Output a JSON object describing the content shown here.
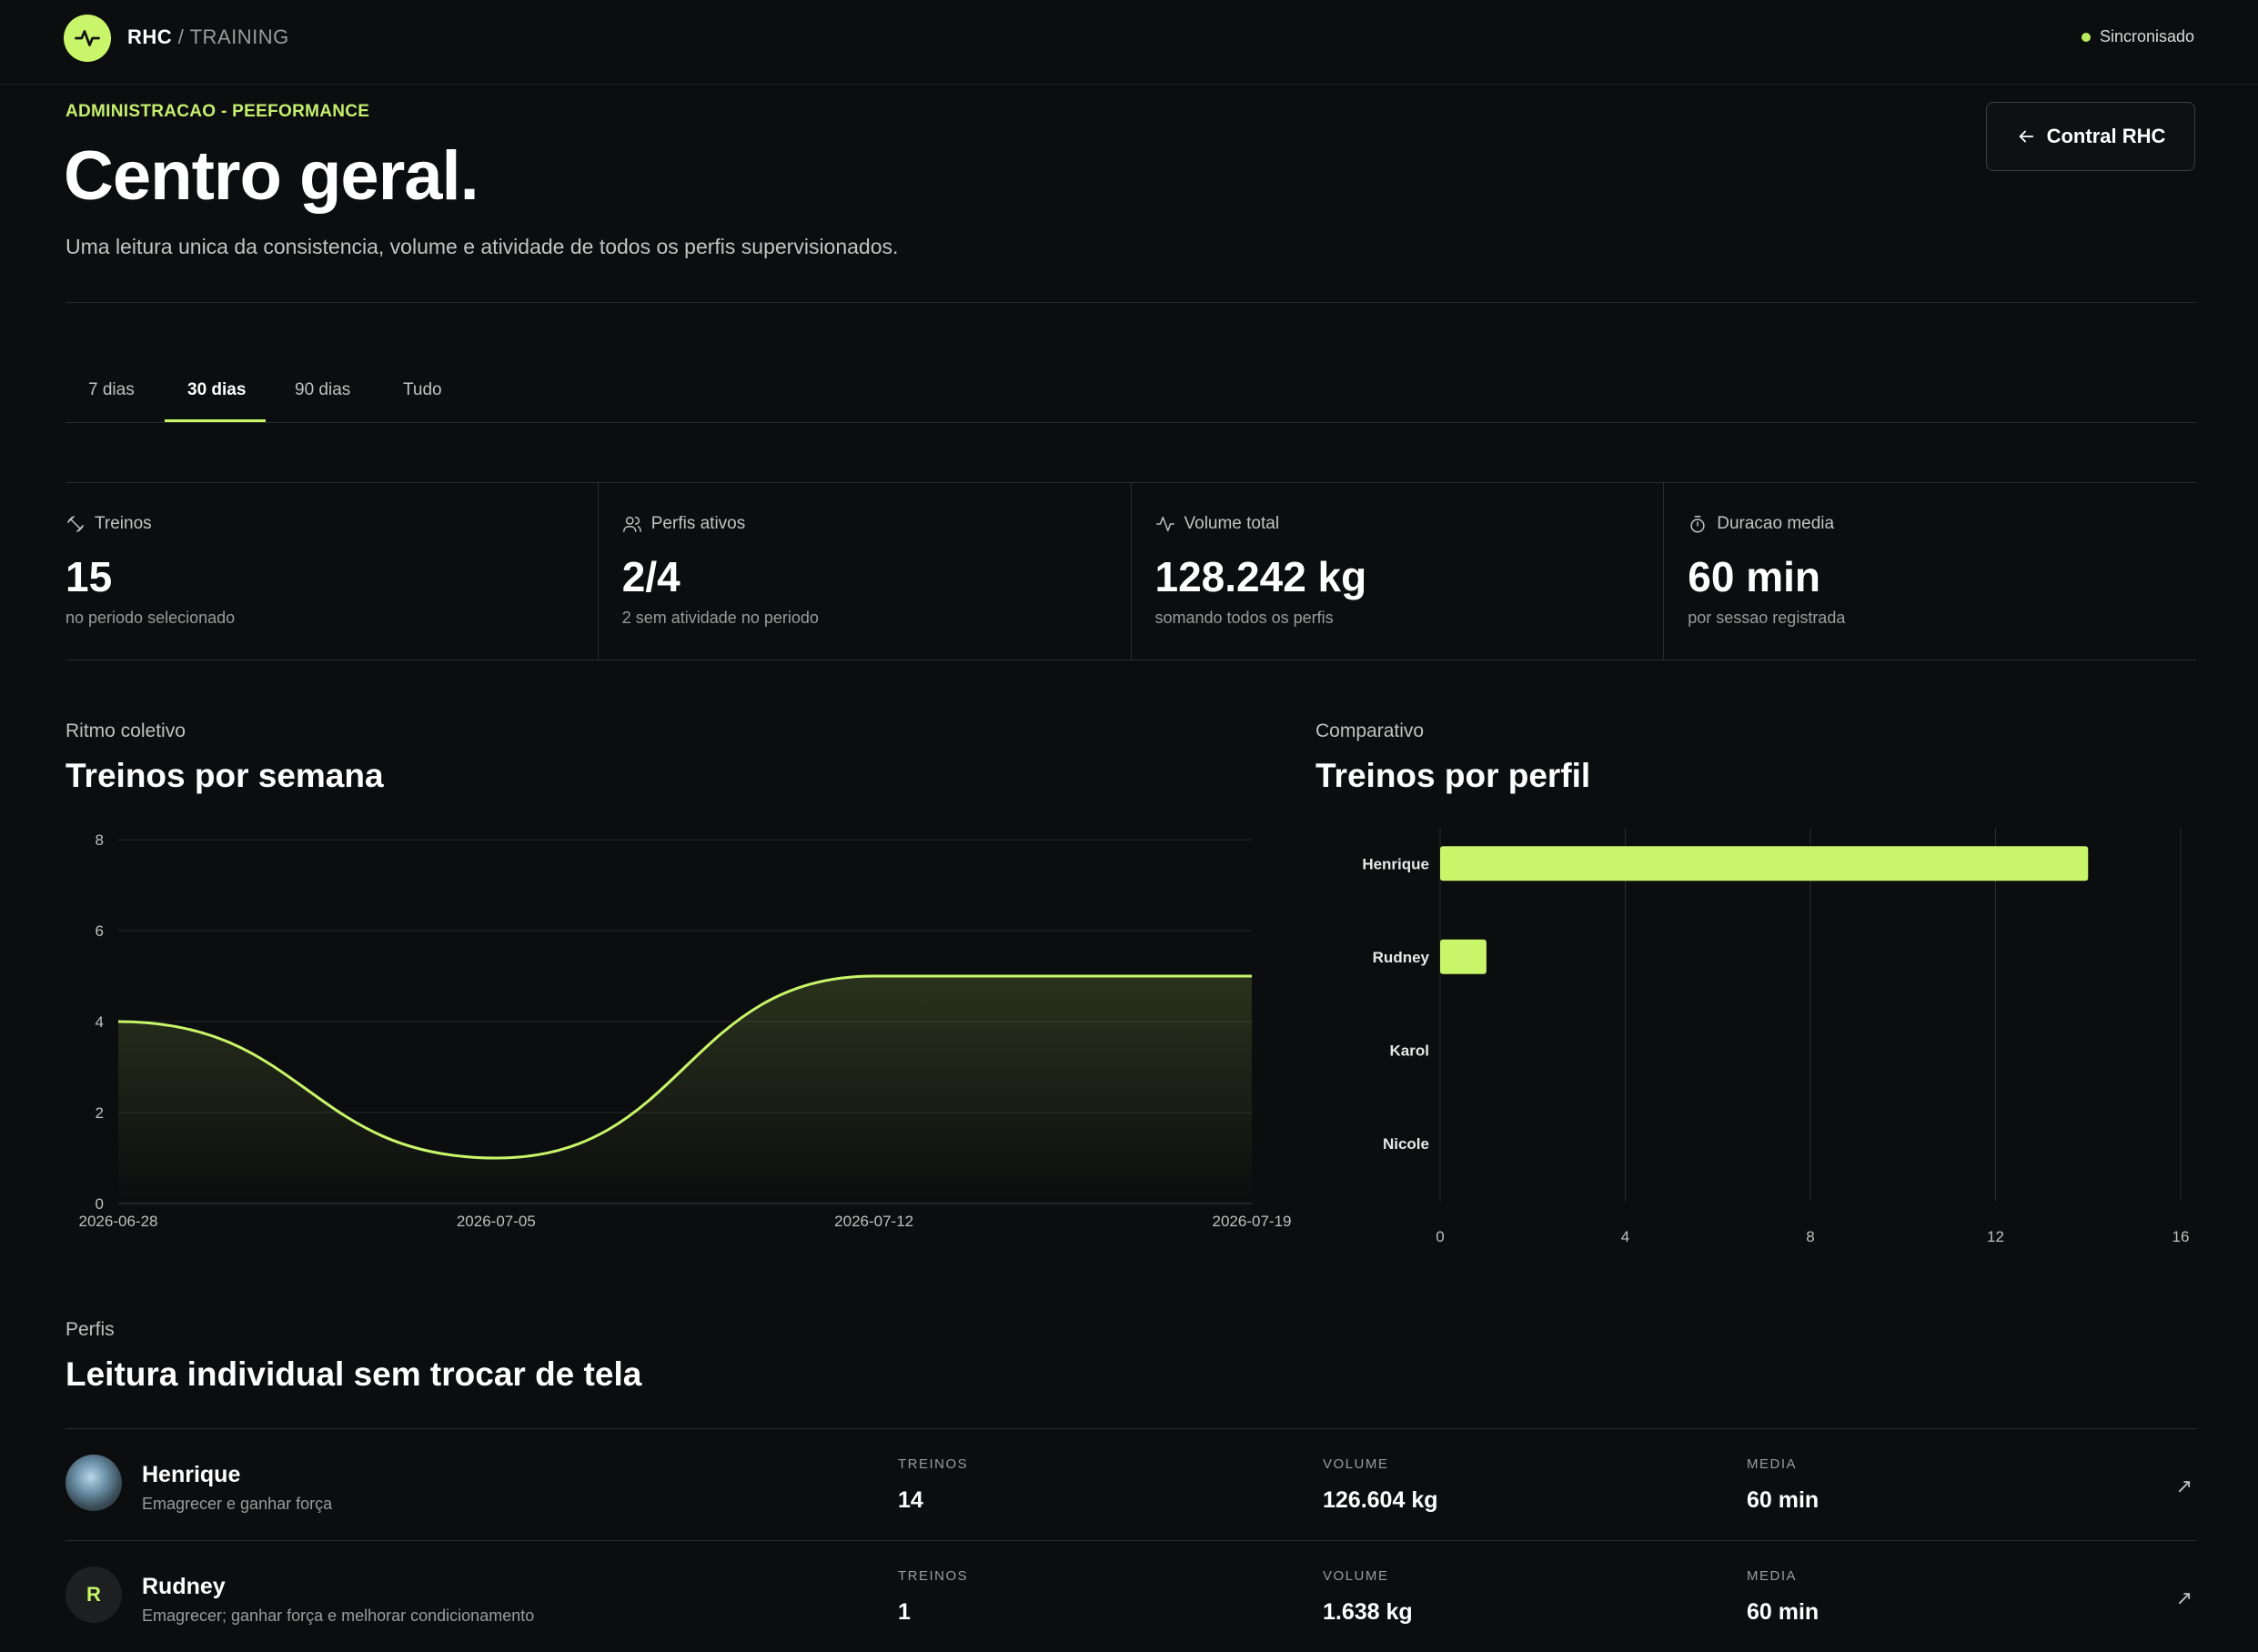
{
  "header": {
    "brand_strong": "RHC",
    "brand_rest": " / TRAINING",
    "sync_status": "Sincronisado"
  },
  "page": {
    "eyebrow": "ADMINISTRACAO - PEEFORMANCE",
    "title": "Centro geral.",
    "subtitle": "Uma leitura unica da consistencia, volume e atividade de todos os perfis supervisionados.",
    "back_button": "Contral RHC"
  },
  "tabs": [
    {
      "label": "7 dias"
    },
    {
      "label": "30 dias"
    },
    {
      "label": "90 dias"
    },
    {
      "label": "Tudo"
    }
  ],
  "active_tab": "30 dias",
  "stats": [
    {
      "icon": "dumbbell-icon",
      "label": "Treinos",
      "value": "15",
      "note": "no periodo selecionado"
    },
    {
      "icon": "users-icon",
      "label": "Perfis ativos",
      "value": "2/4",
      "note": "2 sem atividade no periodo"
    },
    {
      "icon": "activity-icon",
      "label": "Volume total",
      "value": "128.242 kg",
      "note": "somando todos os perfis"
    },
    {
      "icon": "timer-icon",
      "label": "Duracao media",
      "value": "60 min",
      "note": "por sessao registrada"
    }
  ],
  "weekly": {
    "eyebrow": "Ritmo coletivo",
    "title": "Treinos por semana"
  },
  "comparison": {
    "eyebrow": "Comparativo",
    "title": "Treinos por perfil"
  },
  "accent_color": "#c8f56a",
  "chart_data": [
    {
      "type": "area",
      "title": "Treinos por semana",
      "x": [
        "2026-06-28",
        "2026-07-05",
        "2026-07-12",
        "2026-07-19"
      ],
      "values": [
        4,
        1,
        5,
        5
      ],
      "ylim": [
        0,
        8
      ],
      "yticks": [
        0,
        2,
        4,
        6,
        8
      ],
      "xtick_labels": [
        "2026-06-28",
        "2026-07-05",
        "2026-07-12",
        "2026-07-19"
      ],
      "grid": true
    },
    {
      "type": "bar",
      "orientation": "horizontal",
      "title": "Treinos por perfil",
      "categories": [
        "Henrique",
        "Rudney",
        "Karol",
        "Nicole"
      ],
      "values": [
        14,
        1,
        0,
        0
      ],
      "xlim": [
        0,
        16
      ],
      "xticks": [
        0,
        4,
        8,
        12,
        16
      ],
      "grid": true
    }
  ],
  "profiles_section": {
    "eyebrow": "Perfis",
    "title": "Leitura individual sem trocar de tela",
    "metric_labels": {
      "treinos": "TREINOS",
      "volume": "VOLUME",
      "media": "MEDIA"
    }
  },
  "profiles": [
    {
      "name": "Henrique",
      "goal": "Emagrecer e ganhar força",
      "treinos": "14",
      "volume": "126.604 kg",
      "media": "60 min"
    },
    {
      "name": "Rudney",
      "initial": "R",
      "goal": "Emagrecer; ganhar força e melhorar condicionamento",
      "treinos": "1",
      "volume": "1.638 kg",
      "media": "60 min"
    }
  ]
}
